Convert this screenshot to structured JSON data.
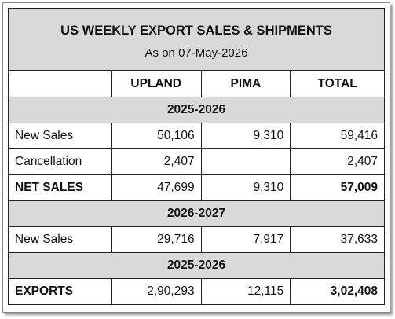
{
  "header": {
    "title": "US WEEKLY EXPORT SALES & SHIPMENTS",
    "subtitle": "As on 07-May-2026"
  },
  "table": {
    "columns": [
      "UPLAND",
      "PIMA",
      "TOTAL"
    ],
    "sections": [
      {
        "label": "2025-2026",
        "rows": [
          {
            "label": "New Sales",
            "values": [
              "50,106",
              "9,310",
              "59,416"
            ]
          },
          {
            "label": "Cancellation",
            "values": [
              "2,407",
              null,
              "2,407"
            ]
          },
          {
            "label": "NET SALES",
            "values": [
              "47,699",
              "9,310",
              "57,009"
            ],
            "emphasis": true
          }
        ]
      },
      {
        "label": "2026-2027",
        "rows": [
          {
            "label": "New Sales",
            "values": [
              "29,716",
              "7,917",
              "37,633"
            ]
          }
        ]
      },
      {
        "label": "2025-2026",
        "rows": [
          {
            "label": "EXPORTS",
            "values": [
              "2,90,293",
              "12,115",
              "3,02,408"
            ],
            "emphasis": true
          }
        ]
      }
    ]
  }
}
